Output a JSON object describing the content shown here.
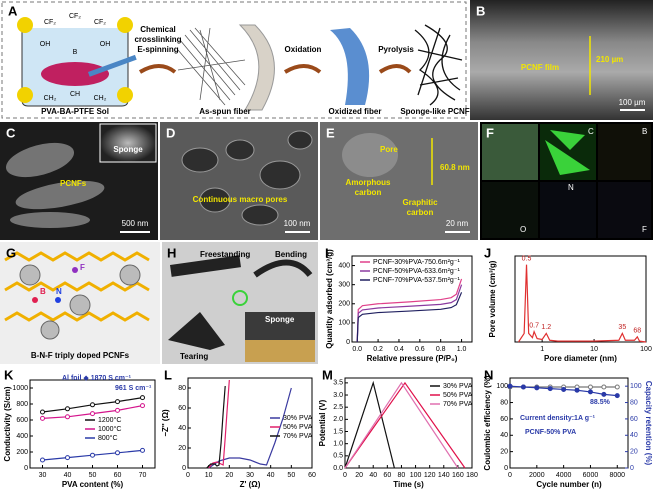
{
  "figure": {
    "A": {
      "label": "A",
      "sol": "PVA-BA-PTFE Sol",
      "step1": [
        "Chemical",
        "crosslinking",
        "E-spinning"
      ],
      "asspun": "As-spun fiber",
      "step2": "Oxidation",
      "oxidized": "Oxidized fiber",
      "step3": "Pyrolysis",
      "product": "Sponge-like PCNF",
      "chem": [
        "CF₂",
        "CF₂",
        "CF₂",
        "OH",
        "B",
        "OH",
        "CH₂",
        "CH",
        "CH₂"
      ]
    },
    "B": {
      "label": "B",
      "film": "PCNF film",
      "thickness": "210 µm",
      "scale": "100 µm"
    },
    "C": {
      "label": "C",
      "inset": "Sponge",
      "name": "PCNFs",
      "scale": "500 nm"
    },
    "D": {
      "label": "D",
      "name": "Continuous macro pores",
      "scale": "100 nm"
    },
    "E": {
      "label": "E",
      "pore": "Pore",
      "size": "60.8 nm",
      "amorphous": [
        "Amorphous",
        "carbon"
      ],
      "graphitic": [
        "Graphitic",
        "carbon"
      ],
      "scale": "20 nm"
    },
    "F": {
      "label": "F",
      "elements": [
        "C",
        "B",
        "N",
        "F",
        "O"
      ]
    },
    "G": {
      "label": "G",
      "atoms": [
        "B",
        "N",
        "F"
      ],
      "caption": "B-N-F triply doped PCNFs"
    },
    "H": {
      "label": "H",
      "photos": [
        "Freestanding",
        "Bending",
        "Tearing",
        "Sponge"
      ]
    }
  },
  "chart_data": [
    {
      "type": "line",
      "label": "I",
      "xlabel": "Relative pressure (P/P₀)",
      "ylabel": "Quantity adsorbed (cm³/g)",
      "xlim": [
        -0.05,
        1.1
      ],
      "ylim": [
        0,
        450
      ],
      "xticks": [
        {
          "value": 0,
          "label": "0.0"
        },
        0.2,
        0.4,
        0.6,
        0.8,
        {
          "value": 1,
          "label": "1.0"
        }
      ],
      "yticks": [
        0,
        100,
        200,
        300,
        400
      ],
      "series": [
        {
          "name": "PCNF-30%PVA-750.6m²g⁻¹",
          "color": "#e0408a",
          "x": [
            0,
            0.01,
            0.05,
            0.2,
            0.5,
            0.8,
            0.9,
            0.95,
            1.0
          ],
          "values": [
            0,
            170,
            190,
            200,
            210,
            222,
            232,
            250,
            330
          ]
        },
        {
          "name": "PCNF-50%PVA-633.6m²g⁻¹",
          "color": "#8a3aa0",
          "x": [
            0,
            0.01,
            0.05,
            0.2,
            0.5,
            0.8,
            0.9,
            0.95,
            1.0
          ],
          "values": [
            0,
            150,
            168,
            178,
            187,
            197,
            206,
            222,
            300
          ]
        },
        {
          "name": "PCNF-70%PVA-537.5m²g⁻¹",
          "color": "#202060",
          "x": [
            0,
            0.01,
            0.05,
            0.2,
            0.5,
            0.8,
            0.9,
            0.95,
            1.0
          ],
          "values": [
            0,
            128,
            145,
            154,
            162,
            171,
            180,
            195,
            260
          ]
        }
      ]
    },
    {
      "type": "line",
      "label": "J",
      "xlabel": "Pore diameter (nm)",
      "ylabel": "Pore volume (cm³/g)",
      "xscale": "log",
      "xlim": [
        0.3,
        100
      ],
      "ylim": [
        0,
        0.1
      ],
      "xticks": [
        1,
        10,
        100
      ],
      "peak_labels": [
        0.5,
        0.7,
        1.2,
        35,
        68
      ],
      "series": [
        {
          "color": "#e03030",
          "x": [
            0.35,
            0.45,
            0.5,
            0.55,
            0.65,
            0.7,
            0.8,
            1.0,
            1.2,
            1.4,
            2,
            5,
            10,
            30,
            35,
            40,
            60,
            68,
            75,
            100
          ],
          "values": [
            0,
            0.01,
            0.09,
            0.01,
            0.005,
            0.012,
            0.004,
            0.003,
            0.01,
            0.002,
            0.001,
            0.001,
            0.001,
            0.002,
            0.01,
            0.002,
            0.002,
            0.006,
            0.001,
            0
          ]
        }
      ]
    },
    {
      "type": "line",
      "label": "K",
      "xlabel": "PVA content (%)",
      "ylabel": "Conductivity (S/cm)",
      "markers": true,
      "xlim": [
        25,
        75
      ],
      "ylim": [
        0,
        1100
      ],
      "xticks": [
        30,
        40,
        50,
        60,
        70
      ],
      "yticks": [
        0,
        200,
        400,
        600,
        800,
        1000
      ],
      "annotations": [
        "Al foil ◆ 1870 S cm⁻¹",
        "961 S cm⁻¹"
      ],
      "series": [
        {
          "name": "1200°C",
          "color": "#111111",
          "x": [
            30,
            40,
            50,
            60,
            70
          ],
          "values": [
            700,
            740,
            790,
            830,
            880
          ]
        },
        {
          "name": "1000°C",
          "color": "#d4148c",
          "x": [
            30,
            40,
            50,
            60,
            70
          ],
          "values": [
            620,
            640,
            680,
            720,
            780
          ]
        },
        {
          "name": "800°C",
          "color": "#2a3aa8",
          "x": [
            30,
            40,
            50,
            60,
            70
          ],
          "values": [
            100,
            130,
            160,
            190,
            220
          ]
        }
      ]
    },
    {
      "type": "line",
      "label": "L",
      "xlabel": "Z' (Ω)",
      "ylabel": "−Z'' (Ω)",
      "xlim": [
        0,
        60
      ],
      "ylim": [
        0,
        90
      ],
      "xticks": [
        0,
        10,
        20,
        30,
        40,
        50,
        60
      ],
      "yticks": [
        0,
        20,
        40,
        60,
        80
      ],
      "series": [
        {
          "name": "30% PVA",
          "color": "#3a3aa0",
          "x": [
            10,
            15,
            20,
            25,
            30,
            35,
            38,
            42,
            46,
            50
          ],
          "values": [
            0,
            7,
            10,
            10,
            8,
            4,
            3,
            25,
            50,
            80
          ]
        },
        {
          "name": "50% PVA",
          "color": "#e0206a",
          "x": [
            10,
            12,
            14,
            16,
            17,
            18,
            19,
            20
          ],
          "values": [
            0,
            5,
            6,
            4,
            3,
            30,
            60,
            88
          ]
        },
        {
          "name": "70% PVA",
          "color": "#111111",
          "x": [
            9,
            11,
            13,
            14,
            15,
            16,
            17,
            18
          ],
          "values": [
            0,
            4,
            4,
            2,
            3,
            25,
            55,
            82
          ]
        }
      ]
    },
    {
      "type": "line",
      "label": "M",
      "xlabel": "Time (s)",
      "ylabel": "Potential (V)",
      "xlim": [
        0,
        180
      ],
      "ylim": [
        0,
        3.7
      ],
      "xticks": [
        0,
        20,
        40,
        60,
        80,
        100,
        120,
        140,
        160,
        180
      ],
      "yticks": [
        {
          "value": 0,
          "label": "0.0"
        },
        0.5,
        {
          "value": 1,
          "label": "1.0"
        },
        1.5,
        {
          "value": 2,
          "label": "2.0"
        },
        2.5,
        {
          "value": 3,
          "label": "3.0"
        },
        3.5
      ],
      "series": [
        {
          "name": "30% PVA",
          "color": "#111111",
          "x": [
            0,
            40,
            70
          ],
          "values": [
            0,
            3.5,
            0
          ]
        },
        {
          "name": "50% PVA",
          "color": "#e0104a",
          "x": [
            0,
            85,
            170
          ],
          "values": [
            0,
            3.5,
            0
          ]
        },
        {
          "name": "70% PVA",
          "color": "#e070b0",
          "x": [
            0,
            80,
            160
          ],
          "values": [
            0,
            3.5,
            0
          ]
        }
      ]
    },
    {
      "type": "line",
      "label": "N",
      "xlabel": "Cycle number (n)",
      "ylabel": "Coulombic efficiency (%)",
      "y2label": "Capacity retention (%)",
      "markers": true,
      "xlim": [
        0,
        8800
      ],
      "ylim": [
        0,
        110
      ],
      "y2lim": [
        0,
        110
      ],
      "xticks": [
        0,
        2000,
        4000,
        6000,
        8000
      ],
      "yticks": [
        0,
        20,
        40,
        60,
        80,
        100
      ],
      "y2ticks": [
        0,
        20,
        40,
        60,
        80,
        100
      ],
      "annotations": [
        "Current density:1A g⁻¹",
        "PCNF-50% PVA",
        "88.5%"
      ],
      "series": [
        {
          "color": "#777777",
          "x": [
            0,
            1000,
            2000,
            3000,
            4000,
            5000,
            6000,
            7000,
            8000
          ],
          "values": [
            99,
            99,
            99,
            99,
            99,
            99,
            99,
            99,
            99
          ]
        },
        {
          "color": "#2a3aa8",
          "axis": "y2",
          "x": [
            0,
            1000,
            2000,
            3000,
            4000,
            5000,
            6000,
            7000,
            8000
          ],
          "values": [
            100,
            99,
            98,
            97,
            96,
            95,
            93,
            90,
            88.5
          ]
        }
      ]
    }
  ]
}
